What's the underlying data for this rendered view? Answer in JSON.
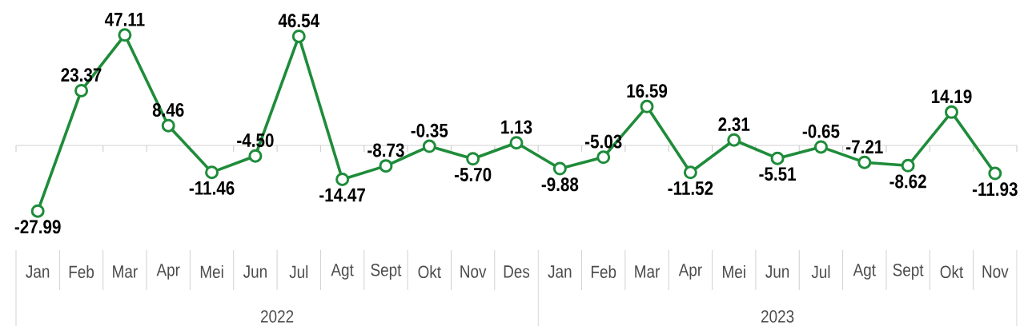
{
  "chart_data": {
    "type": "line",
    "categories": [
      "Jan",
      "Feb",
      "Mar",
      "Apr",
      "Mei",
      "Jun",
      "Jul",
      "Agt",
      "Sept",
      "Okt",
      "Nov",
      "Des",
      "Jan",
      "Feb",
      "Mar",
      "Apr",
      "Mei",
      "Jun",
      "Jul",
      "Agt",
      "Sept",
      "Okt",
      "Nov"
    ],
    "series": [
      {
        "color": "#1e8c3a",
        "values": [
          -27.99,
          23.37,
          47.11,
          8.46,
          -11.46,
          -4.5,
          46.54,
          -14.47,
          -8.73,
          -0.35,
          -5.7,
          1.13,
          -9.88,
          -5.03,
          16.59,
          -11.52,
          2.31,
          -5.51,
          -0.65,
          -7.21,
          -8.62,
          14.19,
          -11.93
        ],
        "value_labels": [
          "-27.99",
          "23.37",
          "47.11",
          "8.46",
          "-11.46",
          "-4.50",
          "46.54",
          "-14.47",
          "-8.73",
          "-0.35",
          "-5.70",
          "1.13",
          "-9.88",
          "-5.03",
          "16.59",
          "-11.52",
          "2.31",
          "-5.51",
          "-0.65",
          "-7.21",
          "-8.62",
          "14.19",
          "-11.93"
        ]
      }
    ],
    "annotations": [
      "2022",
      "2023"
    ],
    "marker": "circle",
    "line_style": "solid"
  }
}
